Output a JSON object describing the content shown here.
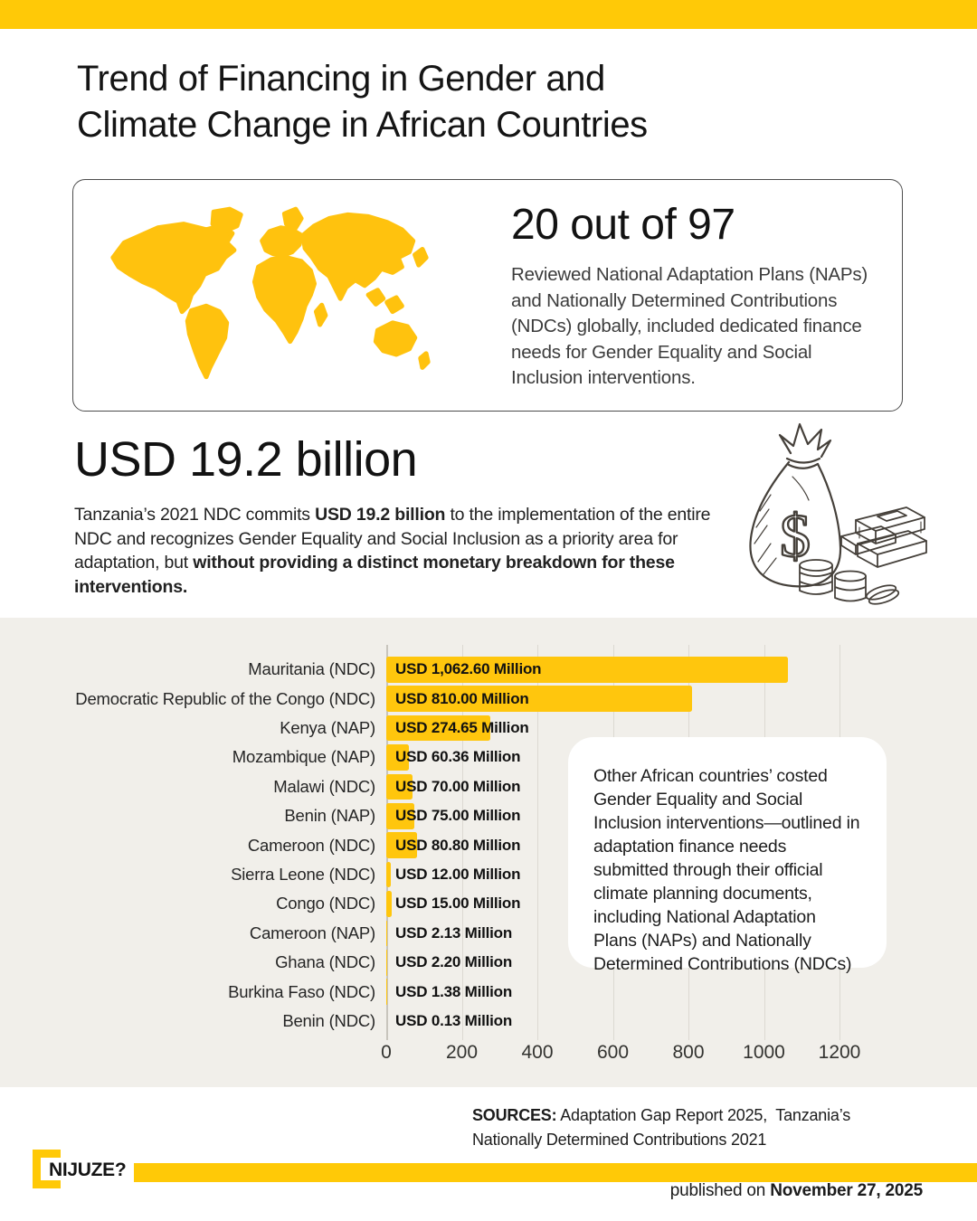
{
  "header": {
    "title_line1": "Trend of Financing in Gender and",
    "title_line2": "Climate Change in African Countries"
  },
  "stat_card": {
    "headline": "20 out of 97",
    "description": "Reviewed National Adaptation Plans (NAPs) and Nationally Determined Contributions (NDCs) globally, included dedicated finance needs for Gender Equality and Social Inclusion interventions."
  },
  "billion": {
    "headline": "USD 19.2 billion",
    "para_part1": "Tanzania’s 2021 NDC commits ",
    "para_bold1": "USD 19.2 billion",
    "para_part2": " to the implementation of the entire NDC and recognizes Gender Equality and Social Inclusion as a priority area for adaptation, but ",
    "para_bold2": "without providing a distinct monetary breakdown for these interventions."
  },
  "chart_data": {
    "type": "bar",
    "orientation": "horizontal",
    "categories": [
      "Mauritania (NDC)",
      "Democratic Republic of the Congo (NDC)",
      "Kenya (NAP)",
      "Mozambique (NAP)",
      "Malawi (NDC)",
      "Benin (NAP)",
      "Cameroon (NDC)",
      "Sierra Leone (NDC)",
      "Congo (NDC)",
      "Cameroon (NAP)",
      "Ghana (NDC)",
      "Burkina Faso (NDC)",
      "Benin (NDC)"
    ],
    "values": [
      1062.6,
      810.0,
      274.65,
      60.36,
      70.0,
      75.0,
      80.8,
      12.0,
      15.0,
      2.13,
      2.2,
      1.38,
      0.13
    ],
    "value_labels": [
      "USD 1,062.60 Million",
      "USD 810.00 Million",
      "USD 274.65 Million",
      "USD 60.36 Million",
      "USD 70.00 Million",
      "USD 75.00 Million",
      "USD 80.80 Million",
      "USD 12.00 Million",
      "USD 15.00 Million",
      "USD 2.13 Million",
      "USD 2.20 Million",
      "USD 1.38 Million",
      "USD 0.13 Million"
    ],
    "unit": "USD Million",
    "x_ticks": [
      0,
      200,
      400,
      600,
      800,
      1000,
      1200
    ],
    "xlim": [
      0,
      1200
    ],
    "grid": true,
    "bar_color": "#FFC60D",
    "annotation": "Other African countries’ costed Gender Equality and Social Inclusion interventions—outlined in adaptation finance needs submitted through their official climate planning documents, including National Adaptation Plans (NAPs) and Nationally Determined Contributions (NDCs)"
  },
  "sources": {
    "label": "SOURCES:",
    "text": " Adaptation Gap Report 2025,  Tanzania’s  Nationally Determined Contributions 2021"
  },
  "footer": {
    "brand": "NIJUZE?",
    "published_prefix": "published on ",
    "published_date": "November 27, 2025"
  },
  "icons": {
    "world_map": "world-map-icon",
    "money_bag": "money-bag-icon",
    "money_symbol": "$"
  },
  "colors": {
    "accent_yellow": "#FFC907",
    "bar_yellow": "#FFC60D",
    "chart_background": "#F1EFEA",
    "card_border": "#4D4D4D",
    "text_dark": "#141414"
  }
}
